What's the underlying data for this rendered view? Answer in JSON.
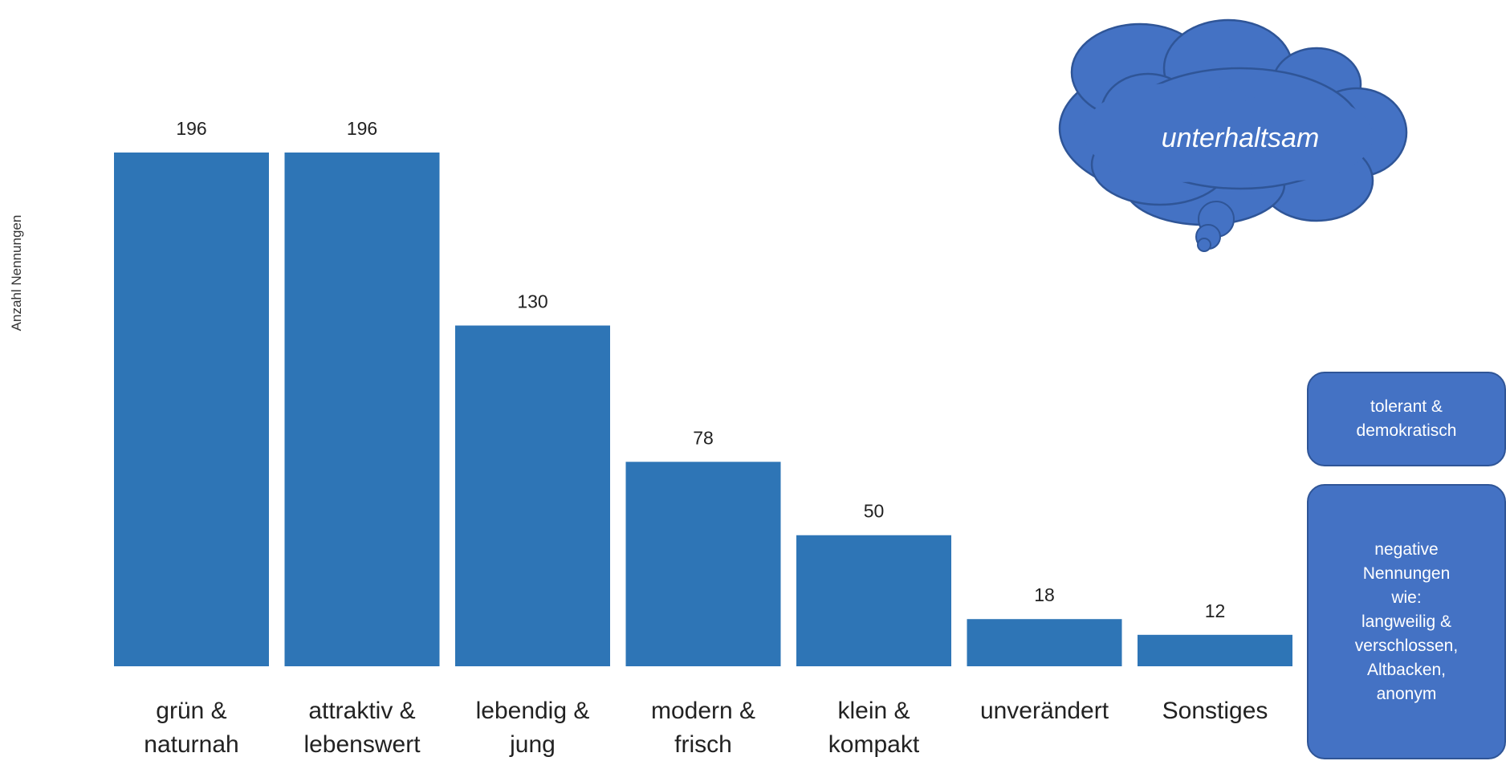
{
  "chart_data": {
    "type": "bar",
    "title": "",
    "xlabel": "",
    "ylabel": "Anzahl Nennungen",
    "categories": [
      "grün &\nnaturnah",
      "attraktiv &\nlebenswert",
      "lebendig &\njung",
      "modern &\nfrisch",
      "klein &\nkompakt",
      "unverändert",
      "Sonstiges"
    ],
    "values": [
      196,
      196,
      130,
      78,
      50,
      18,
      12
    ],
    "ylim": [
      0,
      196
    ],
    "grid": false,
    "bar_color": "#2E75B6"
  },
  "callouts": {
    "cloud_text": "unterhaltsam",
    "box1_text": "tolerant &\ndemokratisch",
    "box2_text": "negative\nNennungen\nwie:\nlangweilig &\nverschlossen,\nAltbacken,\nanonym",
    "shape_fill": "#4472C4",
    "shape_border": "#2F5597"
  }
}
